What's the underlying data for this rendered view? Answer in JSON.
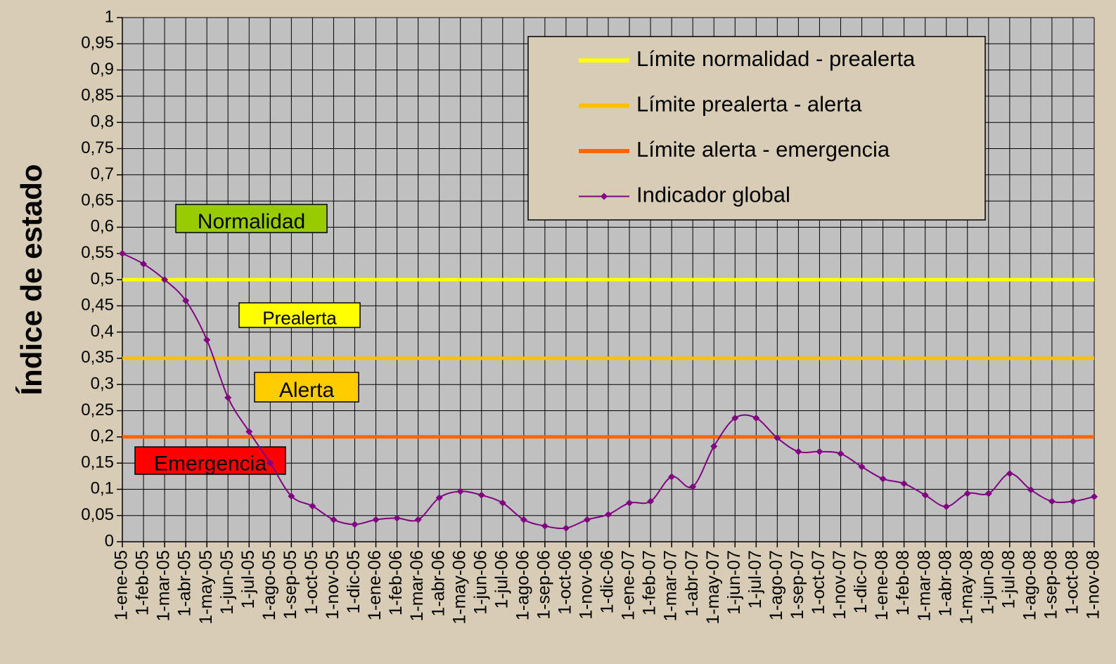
{
  "chart_data": {
    "type": "line",
    "ylabel": "Índice de estado",
    "categories": [
      "1-ene-05",
      "1-feb-05",
      "1-mar-05",
      "1-abr-05",
      "1-may-05",
      "1-jun-05",
      "1-jul-05",
      "1-ago-05",
      "1-sep-05",
      "1-oct-05",
      "1-nov-05",
      "1-dic-05",
      "1-ene-06",
      "1-feb-06",
      "1-mar-06",
      "1-abr-06",
      "1-may-06",
      "1-jun-06",
      "1-jul-06",
      "1-ago-06",
      "1-sep-06",
      "1-oct-06",
      "1-nov-06",
      "1-dic-06",
      "1-ene-07",
      "1-feb-07",
      "1-mar-07",
      "1-abr-07",
      "1-may-07",
      "1-jun-07",
      "1-jul-07",
      "1-ago-07",
      "1-sep-07",
      "1-oct-07",
      "1-nov-07",
      "1-dic-07",
      "1-ene-08",
      "1-feb-08",
      "1-mar-08",
      "1-abr-08",
      "1-may-08",
      "1-jun-08",
      "1-jul-08",
      "1-ago-08",
      "1-sep-08",
      "1-oct-08",
      "1-nov-08"
    ],
    "series": [
      {
        "name": "Límite normalidad - prealerta",
        "color": "#ffff00",
        "values": [
          0.5,
          0.5,
          0.5,
          0.5,
          0.5,
          0.5,
          0.5,
          0.5,
          0.5,
          0.5,
          0.5,
          0.5,
          0.5,
          0.5,
          0.5,
          0.5,
          0.5,
          0.5,
          0.5,
          0.5,
          0.5,
          0.5,
          0.5,
          0.5,
          0.5,
          0.5,
          0.5,
          0.5,
          0.5,
          0.5,
          0.5,
          0.5,
          0.5,
          0.5,
          0.5,
          0.5,
          0.5,
          0.5,
          0.5,
          0.5,
          0.5,
          0.5,
          0.5,
          0.5,
          0.5,
          0.5,
          0.5
        ]
      },
      {
        "name": "Límite prealerta - alerta",
        "color": "#ffc000",
        "values": [
          0.35,
          0.35,
          0.35,
          0.35,
          0.35,
          0.35,
          0.35,
          0.35,
          0.35,
          0.35,
          0.35,
          0.35,
          0.35,
          0.35,
          0.35,
          0.35,
          0.35,
          0.35,
          0.35,
          0.35,
          0.35,
          0.35,
          0.35,
          0.35,
          0.35,
          0.35,
          0.35,
          0.35,
          0.35,
          0.35,
          0.35,
          0.35,
          0.35,
          0.35,
          0.35,
          0.35,
          0.35,
          0.35,
          0.35,
          0.35,
          0.35,
          0.35,
          0.35,
          0.35,
          0.35,
          0.35,
          0.35
        ]
      },
      {
        "name": "Límite alerta - emergencia",
        "color": "#ff6600",
        "values": [
          0.2,
          0.2,
          0.2,
          0.2,
          0.2,
          0.2,
          0.2,
          0.2,
          0.2,
          0.2,
          0.2,
          0.2,
          0.2,
          0.2,
          0.2,
          0.2,
          0.2,
          0.2,
          0.2,
          0.2,
          0.2,
          0.2,
          0.2,
          0.2,
          0.2,
          0.2,
          0.2,
          0.2,
          0.2,
          0.2,
          0.2,
          0.2,
          0.2,
          0.2,
          0.2,
          0.2,
          0.2,
          0.2,
          0.2,
          0.2,
          0.2,
          0.2,
          0.2,
          0.2,
          0.2,
          0.2,
          0.2
        ]
      },
      {
        "name": "Indicador global",
        "color": "#800080",
        "marker": "diamond",
        "values": [
          0.55,
          0.53,
          0.5,
          0.46,
          0.385,
          0.275,
          0.21,
          0.15,
          0.087,
          0.068,
          0.042,
          0.033,
          0.042,
          0.045,
          0.042,
          0.084,
          0.096,
          0.089,
          0.074,
          0.042,
          0.03,
          0.026,
          0.042,
          0.052,
          0.074,
          0.077,
          0.124,
          0.105,
          0.182,
          0.236,
          0.236,
          0.198,
          0.172,
          0.172,
          0.168,
          0.143,
          0.12,
          0.111,
          0.089,
          0.067,
          0.092,
          0.092,
          0.13,
          0.099,
          0.077,
          0.077,
          0.086
        ]
      }
    ],
    "annotations": [
      {
        "text": "Normalidad",
        "color": "#99cc00"
      },
      {
        "text": "Prealerta",
        "color": "#ffff00"
      },
      {
        "text": "Alerta",
        "color": "#ffcc00"
      },
      {
        "text": "Emergencia",
        "color": "#ff0000"
      }
    ],
    "ylim": [
      0,
      1
    ],
    "yticks": [
      0,
      {
        "value": 0.05,
        "label": "0,05"
      },
      {
        "value": 0.1,
        "label": "0,1"
      },
      {
        "value": 0.15,
        "label": "0,15"
      },
      {
        "value": 0.2,
        "label": "0,2"
      },
      {
        "value": 0.25,
        "label": "0,25"
      },
      {
        "value": 0.3,
        "label": "0,3"
      },
      {
        "value": 0.35,
        "label": "0,35"
      },
      {
        "value": 0.4,
        "label": "0,4"
      },
      {
        "value": 0.45,
        "label": "0,45"
      },
      {
        "value": 0.5,
        "label": "0,5"
      },
      {
        "value": 0.55,
        "label": "0,55"
      },
      {
        "value": 0.6,
        "label": "0,6"
      },
      {
        "value": 0.65,
        "label": "0,65"
      },
      {
        "value": 0.7,
        "label": "0,7"
      },
      {
        "value": 0.75,
        "label": "0,75"
      },
      {
        "value": 0.8,
        "label": "0,8"
      },
      {
        "value": 0.85,
        "label": "0,85"
      },
      {
        "value": 0.9,
        "label": "0,9"
      },
      {
        "value": 0.95,
        "label": "0,95"
      },
      1
    ],
    "grid": true,
    "legend": "top-right"
  }
}
